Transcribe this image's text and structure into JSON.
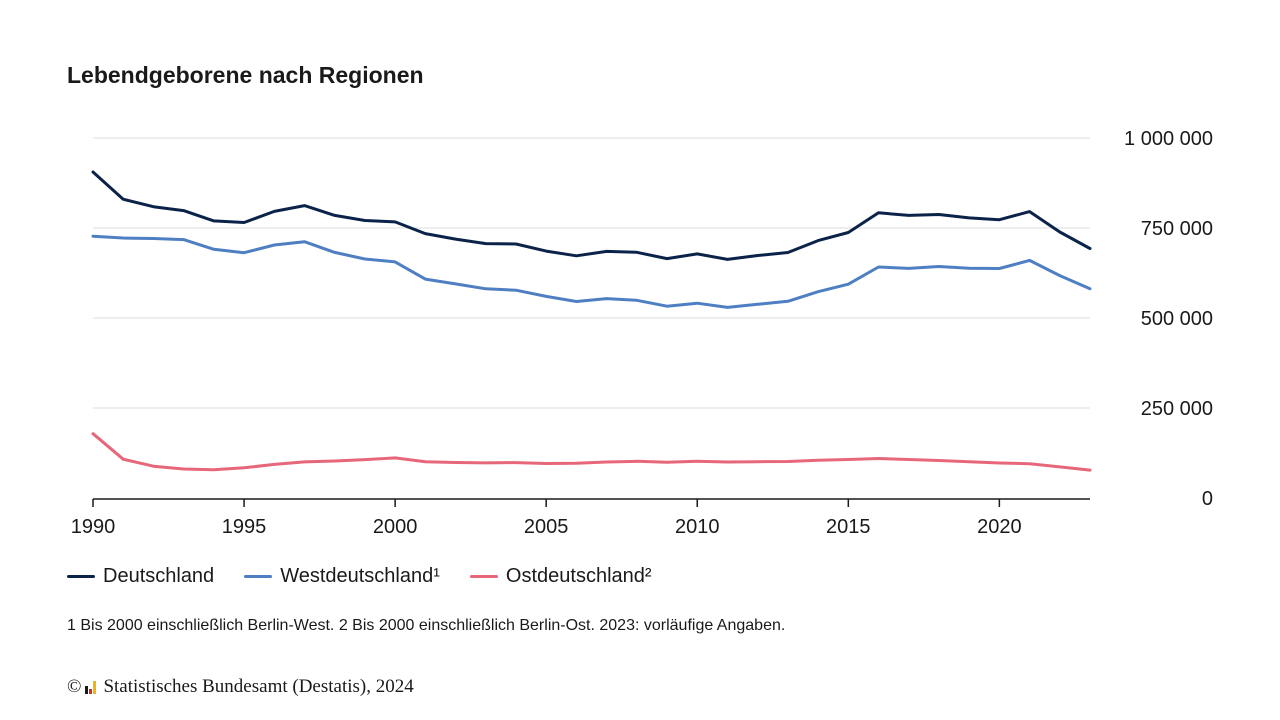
{
  "header": {
    "title": "Lebendgeborene nach Regionen"
  },
  "chart_data": {
    "type": "line",
    "title": "Lebendgeborene nach Regionen",
    "xlabel": "",
    "ylabel": "",
    "x": [
      1990,
      1991,
      1992,
      1993,
      1994,
      1995,
      1996,
      1997,
      1998,
      1999,
      2000,
      2001,
      2002,
      2003,
      2004,
      2005,
      2006,
      2007,
      2008,
      2009,
      2010,
      2011,
      2012,
      2013,
      2014,
      2015,
      2016,
      2017,
      2018,
      2019,
      2020,
      2021,
      2022,
      2023
    ],
    "xlim": [
      1990,
      2023
    ],
    "ylim": [
      0,
      1000000
    ],
    "x_ticks": [
      1990,
      1995,
      2000,
      2005,
      2010,
      2015,
      2020
    ],
    "x_tick_labels": [
      "1990",
      "1995",
      "2000",
      "2005",
      "2010",
      "2015",
      "2020"
    ],
    "y_ticks": [
      0,
      250000,
      500000,
      750000,
      1000000
    ],
    "y_tick_labels": [
      "0",
      "250 000",
      "500 000",
      "750 000",
      "1 000 000"
    ],
    "grid": true,
    "legend_position": "bottom-left",
    "series": [
      {
        "name": "Deutschland",
        "color": "#0c2349",
        "values": [
          905675,
          830019,
          809114,
          798447,
          769603,
          765221,
          796013,
          812173,
          785034,
          770744,
          766999,
          734475,
          719250,
          706721,
          705622,
          685795,
          672724,
          684862,
          682514,
          665126,
          677947,
          662685,
          673544,
          682069,
          714927,
          737575,
          792141,
          784901,
          787523,
          778090,
          773144,
          795492,
          738819,
          692989
        ]
      },
      {
        "name": "Westdeutschland¹",
        "color": "#4e7fc2",
        "values": [
          727199,
          722250,
          720794,
          717915,
          690905,
          681374,
          702688,
          711915,
          682172,
          664018,
          655732,
          608045,
          594599,
          581190,
          577183,
          560092,
          545935,
          553900,
          549076,
          532840,
          541200,
          529500,
          538100,
          546400,
          573000,
          594000,
          641600,
          637700,
          643000,
          638300,
          637600,
          659900,
          617700,
          581300
        ]
      },
      {
        "name": "Ostdeutschland²",
        "color": "#e7677a",
        "values": [
          178476,
          107769,
          88320,
          80532,
          78698,
          83847,
          93325,
          100258,
          102862,
          106726,
          111267,
          100430,
          98653,
          97531,
          98438,
          95703,
          96789,
          100000,
          102000,
          99500,
          102100,
          99900,
          100900,
          101400,
          104900,
          106900,
          109600,
          107000,
          104300,
          100500,
          97200,
          95300,
          86500,
          77400
        ]
      }
    ]
  },
  "footnote": "1 Bis 2000 einschließlich Berlin-West. 2 Bis 2000 einschließlich Berlin-Ost. 2023: vorläufige Angaben.",
  "credit": {
    "copyright": "©",
    "text": "Statistisches Bundesamt (Destatis), 2024"
  },
  "logo_colors": [
    "#1a1a1a",
    "#d62b1f",
    "#f2b705"
  ]
}
